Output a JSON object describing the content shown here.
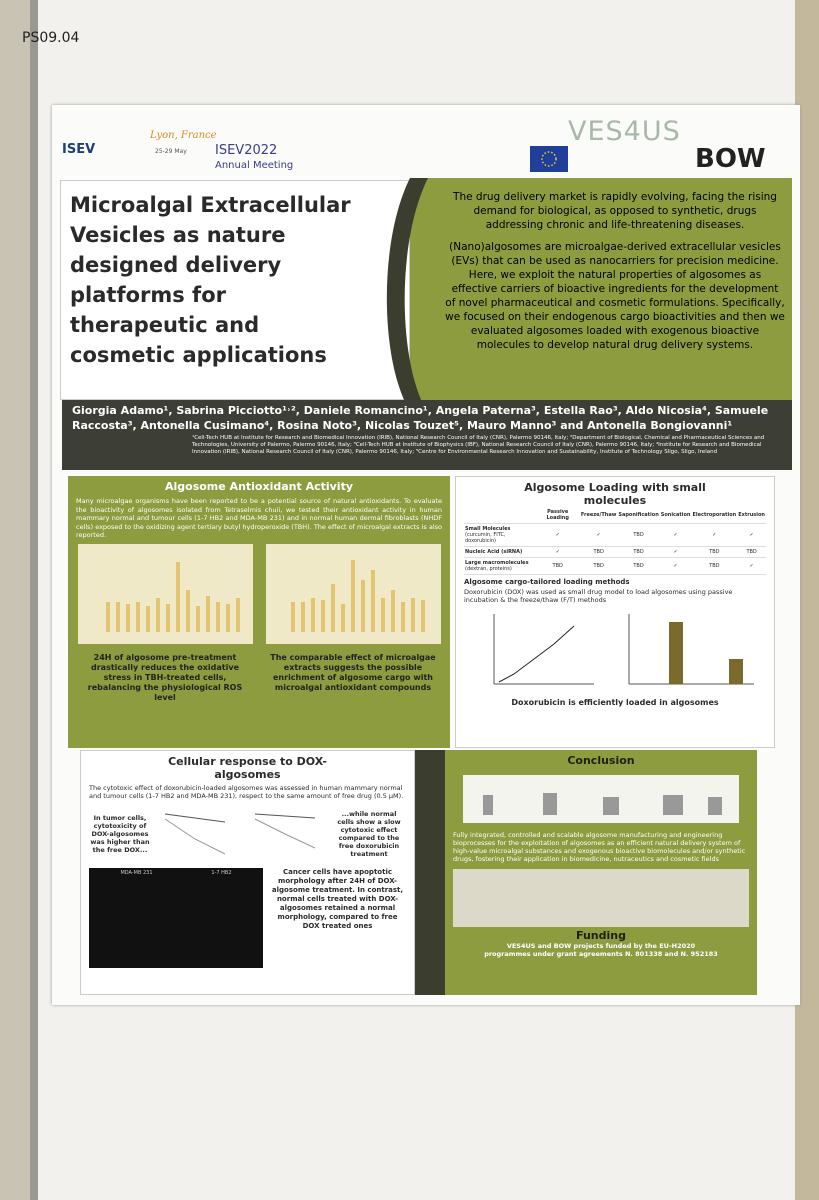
{
  "label": "PS09.04",
  "header": {
    "isev": "ISEV",
    "city": "Lyon, France",
    "dates": "25-29 May",
    "meeting": "ISEV2022",
    "meeting_sub": "Annual Meeting",
    "project": "VES4US",
    "partner": "BOW"
  },
  "title": [
    "Microalgal Extracellular",
    "Vesicles as nature",
    "designed delivery",
    "platforms for",
    "therapeutic and",
    "cosmetic applications"
  ],
  "intro": [
    "The drug delivery market is rapidly evolving, facing the rising demand for biological, as opposed to synthetic, drugs addressing chronic and life-threatening diseases.",
    "(Nano)algosomes are microalgae-derived extracellular vesicles (EVs) that can be used as nanocarriers for precision medicine. Here, we exploit the natural properties of algosomes as effective carriers of bioactive ingredients for the development of novel pharmaceutical and cosmetic formulations. Specifically, we focused on their endogenous cargo bioactivities and then we evaluated algosomes loaded with exogenous bioactive molecules to develop natural drug delivery systems."
  ],
  "authors": "Giorgia Adamo¹, Sabrina Picciotto¹˒², Daniele Romancino¹, Angela Paterna³, Estella Rao³, Aldo Nicosia⁴, Samuele Raccosta³, Antonella Cusimano⁴, Rosina Noto³, Nicolas Touzet⁵, Mauro Manno³ and Antonella Bongiovanni¹",
  "affiliations": "¹Cell-Tech HUB at Institute for Research and Biomedical Innovation (IRIB), National Research Council of Italy (CNR), Palermo 90146, Italy; ²Department of Biological, Chemical and Pharmaceutical Sciences and Technologies, University of Palermo, Palermo 90146, Italy; ³Cell-Tech HUB at Institute of Biophysics (IBF), National Research Council of Italy (CNR), Palermo 90146, Italy; ⁴Institute for Research and Biomedical Innovation (IRIB), National Research Council of Italy (CNR), Palermo 90146, Italy; ⁵Centre for Environmental Research Innovation and Sustainability, Institute of Technology Sligo, Sligo, Ireland",
  "antioxidant": {
    "heading": "Algosome Antioxidant Activity",
    "text": "Many microalgae organisms have been reported to be a potential source of natural antioxidants. To evaluate the bioactivity of algosomes isolated from Tetraselmis chuii, we tested their antioxidant activity in human mammary normal and tumour cells (1-7 HB2 and MDA-MB 231) and in normal human dermal fibroblasts (NHDF cells) exposed to the oxidizing agent tertiary butyl hydroperoxide (TBH). The effect of microalgal extracts is also reported.",
    "caption_a": "24H of algosome pre-treatment drastically reduces the oxidative stress in TBH-treated cells, rebalancing the physiological ROS level",
    "caption_b": "The comparable effect of microalgae extracts suggests the possible enrichment of algosome cargo with microalgal antioxidant compounds"
  },
  "loading": {
    "heading": "Algosome Loading with small molecules",
    "table": {
      "columns": [
        "Passive Loading",
        "Freeze/Thaw",
        "Saponification",
        "Sonication",
        "Electroporation",
        "Extrusion"
      ],
      "rows": [
        {
          "name": "Small Molecules",
          "detail": "(curcumin, FITC, doxorubicin)",
          "cells": [
            "✓",
            "✓",
            "TBD",
            "✓",
            "✓",
            "✓"
          ]
        },
        {
          "name": "Nucleic Acid (siRNA)",
          "cells": [
            "✓",
            "TBD",
            "TBD",
            "✓",
            "TBD",
            "TBD"
          ]
        },
        {
          "name": "Large macromolecules",
          "detail": "(dextran, proteins)",
          "cells": [
            "TBD",
            "TBD",
            "TBD",
            "✓",
            "TBD",
            "✓"
          ]
        }
      ]
    },
    "subheading": "Algosome cargo-tailored loading methods",
    "text": "Doxorubicin (DOX) was used as small drug model to load algosomes using passive incubation & the freeze/thaw (F/T) methods",
    "caption": "Doxorubicin is efficiently loaded in algosomes"
  },
  "cellular": {
    "heading": "Cellular response to DOX-algosomes",
    "text": "The cytotoxic effect of doxorubicin-loaded algosomes was assessed in human mammary normal and tumour cells (1-7 HB2 and MDA-MB 231), respect to the same amount of free drug (0.5 µM).",
    "left_note": "In tumor cells, cytotoxicity of DOX-algosomes was higher than the free DOX...",
    "right_note": "...while normal cells show a slow cytotoxic effect compared to the free doxorubicin treatment",
    "bottom_note": "Cancer cells have apoptotic morphology after 24H of DOX-algosome treatment. In contrast, normal cells treated with DOX-algosomes retained a normal morphology, compared to free DOX treated ones",
    "panel_a": "MDA-MB 231",
    "panel_b": "1-7 HB2"
  },
  "conclusion": {
    "heading": "Conclusion",
    "text": "Fully integrated, controlled and scalable algosome manufacturing and engineering bioprocesses for the exploitation of algosomes as an efficient natural delivery system of high-value microalgal substances and exogenous bioactive biomolecules and/or synthetic drugs, fostering their application in biomedicine, nutraceutics and cosmetic fields"
  },
  "funding": {
    "heading": "Funding",
    "text": "VES4US and BOW projects funded by the EU-H2020 programmes under grant agreements N. 801338 and N. 952183"
  }
}
